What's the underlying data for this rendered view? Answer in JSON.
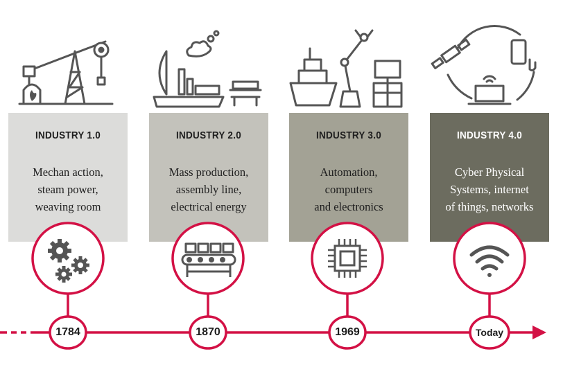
{
  "colors": {
    "accent": "#d31145",
    "icon_stroke": "#555555",
    "panel_1": "#dcdcda",
    "panel_2": "#c3c2bb",
    "panel_3": "#a3a295",
    "panel_4": "#6c6c5f"
  },
  "stages": [
    {
      "title": "INDUSTRY 1.0",
      "description": "Mechan action,\nsteam power,\nweaving room",
      "year": "1784",
      "circle_icon": "gears-icon",
      "illustration": "oil-pump-and-furnace-icon"
    },
    {
      "title": "INDUSTRY 2.0",
      "description": "Mass production,\nassembly line,\nelectrical energy",
      "year": "1870",
      "circle_icon": "conveyor-belt-icon",
      "illustration": "steamship-and-conveyor-icon"
    },
    {
      "title": "INDUSTRY 3.0",
      "description": "Automation,\ncomputers\nand electronics",
      "year": "1969",
      "circle_icon": "microchip-icon",
      "illustration": "ship-robot-arm-computer-icon"
    },
    {
      "title": "INDUSTRY 4.0",
      "description": "Cyber Physical\nSystems, internet\nof things, networks",
      "year": "Today",
      "circle_icon": "wifi-icon",
      "illustration": "satellite-phone-laptop-icon"
    }
  ]
}
